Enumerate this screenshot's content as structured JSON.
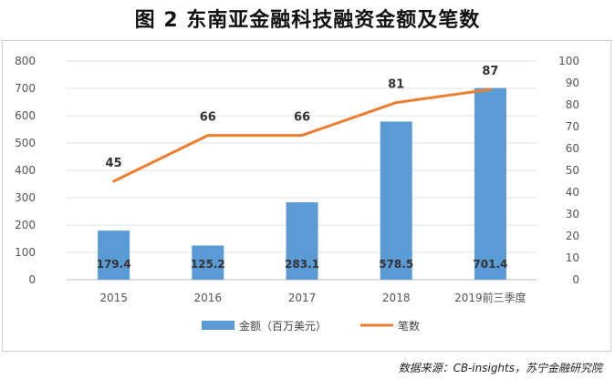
{
  "title": "图 2  东南亚金融科技融资金额及笔数",
  "source": "数据来源：CB-insights，苏宁金融研究院",
  "chart_data": {
    "type": "bar+line",
    "categories": [
      "2015",
      "2016",
      "2017",
      "2018",
      "2019前三季度"
    ],
    "series": [
      {
        "name": "金额（百万美元）",
        "type": "bar",
        "axis": "left",
        "color": "#5b9bd5",
        "values": [
          179.4,
          125.2,
          283.1,
          578.5,
          701.4
        ],
        "labels": [
          "179.4",
          "125.2",
          "283.1",
          "578.5",
          "701.4"
        ]
      },
      {
        "name": "笔数",
        "type": "line",
        "axis": "right",
        "color": "#ed7d31",
        "values": [
          45,
          66,
          66,
          81,
          87
        ],
        "labels": [
          "45",
          "66",
          "66",
          "81",
          "87"
        ]
      }
    ],
    "left_axis": {
      "ylim": [
        0,
        800
      ],
      "ticks": [
        "0",
        "100",
        "200",
        "300",
        "400",
        "500",
        "600",
        "700",
        "800"
      ]
    },
    "right_axis": {
      "ylim": [
        0,
        100
      ],
      "ticks": [
        "0",
        "10",
        "20",
        "30",
        "40",
        "50",
        "60",
        "70",
        "80",
        "90",
        "100"
      ]
    },
    "grid": true,
    "legend_position": "bottom"
  }
}
